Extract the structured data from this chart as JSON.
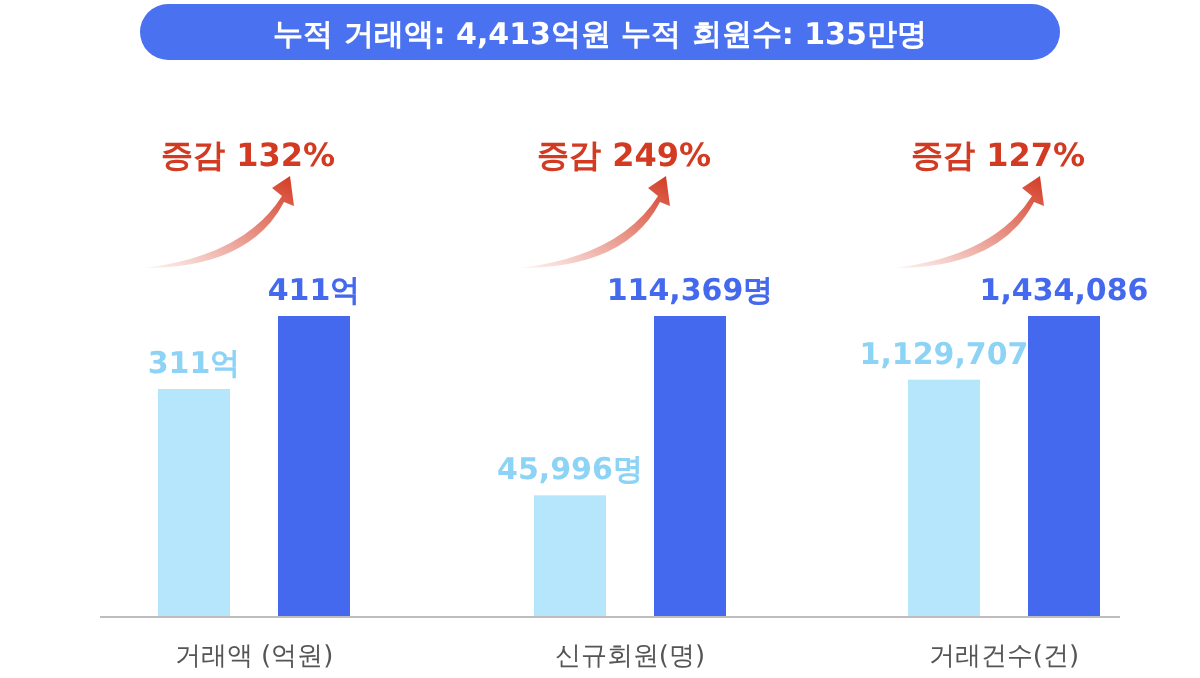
{
  "chart_data": [
    {
      "type": "bar",
      "title": "누적 거래액: 4,413억원  누적 회원수: 135만명",
      "xlabel": "거래액 (억원)",
      "categories": [
        null,
        null
      ],
      "values": [
        311,
        411
      ],
      "colors": [
        "#b5e6fb",
        "#4469ee"
      ],
      "value_labels": [
        "311억",
        "411억"
      ],
      "annotations": [
        "증감 132%"
      ]
    },
    {
      "type": "bar",
      "xlabel": "신규회원(명)",
      "categories": [
        null,
        null
      ],
      "values": [
        45996,
        114369
      ],
      "colors": [
        "#b5e6fb",
        "#4469ee"
      ],
      "value_labels": [
        "45,996명",
        "114,369명"
      ],
      "annotations": [
        "증감 249%"
      ]
    },
    {
      "type": "bar",
      "xlabel": "거래건수(건)",
      "categories": [
        null,
        null
      ],
      "values": [
        1129707,
        1434086
      ],
      "colors": [
        "#b5e6fb",
        "#4469ee"
      ],
      "value_labels": [
        "1,129,707",
        "1,434,086"
      ],
      "annotations": [
        "증감 127%"
      ]
    }
  ]
}
